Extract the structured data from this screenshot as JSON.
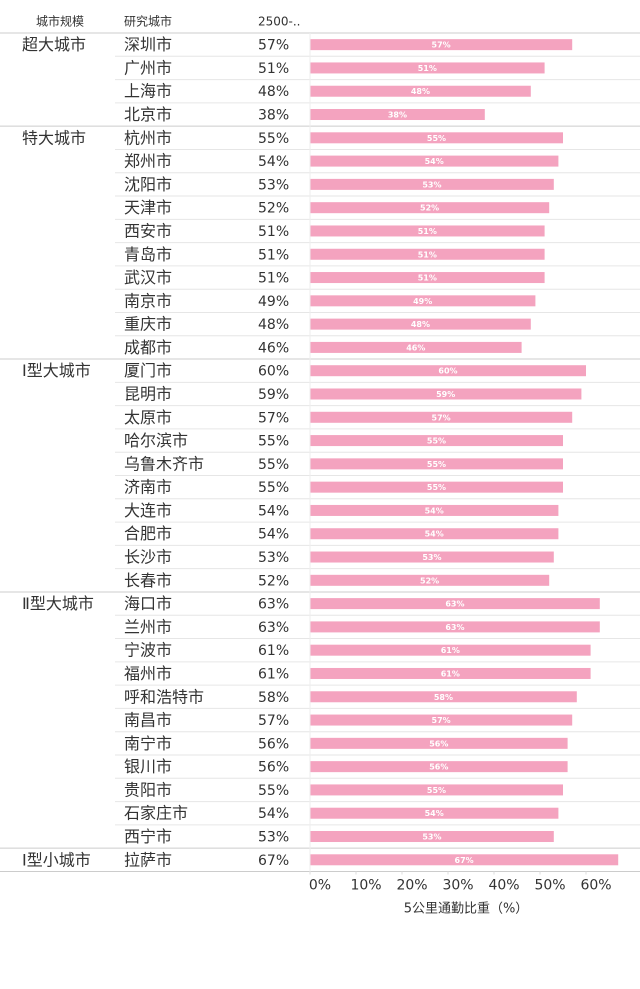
{
  "chart_data": {
    "type": "bar",
    "orientation": "horizontal",
    "headers": [
      "城市规模",
      "研究城市",
      "2500-.."
    ],
    "xlabel": "5公里通勤比重（%）",
    "color": "#f4a3bf",
    "xlim": [
      0,
      70
    ],
    "xticks": [
      {
        "value": 0,
        "label": "0%"
      },
      {
        "value": 10,
        "label": "10%"
      },
      {
        "value": 20,
        "label": "20%"
      },
      {
        "value": 30,
        "label": "30%"
      },
      {
        "value": 40,
        "label": "40%"
      },
      {
        "value": 50,
        "label": "50%"
      },
      {
        "value": 60,
        "label": "60%"
      }
    ],
    "groups": [
      {
        "name": "超大城市",
        "categories": [
          "深圳市",
          "广州市",
          "上海市",
          "北京市"
        ],
        "values": [
          57,
          51,
          48,
          38
        ],
        "value_labels": [
          "57%",
          "51%",
          "48%",
          "38%"
        ]
      },
      {
        "name": "特大城市",
        "categories": [
          "杭州市",
          "郑州市",
          "沈阳市",
          "天津市",
          "西安市",
          "青岛市",
          "武汉市",
          "南京市",
          "重庆市",
          "成都市"
        ],
        "values": [
          55,
          54,
          53,
          52,
          51,
          51,
          51,
          49,
          48,
          46
        ],
        "value_labels": [
          "55%",
          "54%",
          "53%",
          "52%",
          "51%",
          "51%",
          "51%",
          "49%",
          "48%",
          "46%"
        ]
      },
      {
        "name": "Ⅰ型大城市",
        "categories": [
          "厦门市",
          "昆明市",
          "太原市",
          "哈尔滨市",
          "乌鲁木齐市",
          "济南市",
          "大连市",
          "合肥市",
          "长沙市",
          "长春市"
        ],
        "values": [
          60,
          59,
          57,
          55,
          55,
          55,
          54,
          54,
          53,
          52
        ],
        "value_labels": [
          "60%",
          "59%",
          "57%",
          "55%",
          "55%",
          "55%",
          "54%",
          "54%",
          "53%",
          "52%"
        ]
      },
      {
        "name": "Ⅱ型大城市",
        "categories": [
          "海口市",
          "兰州市",
          "宁波市",
          "福州市",
          "呼和浩特市",
          "南昌市",
          "南宁市",
          "银川市",
          "贵阳市",
          "石家庄市",
          "西宁市"
        ],
        "values": [
          63,
          63,
          61,
          61,
          58,
          57,
          56,
          56,
          55,
          54,
          53
        ],
        "value_labels": [
          "63%",
          "63%",
          "61%",
          "61%",
          "58%",
          "57%",
          "56%",
          "56%",
          "55%",
          "54%",
          "53%"
        ]
      },
      {
        "name": "Ⅰ型小城市",
        "categories": [
          "拉萨市"
        ],
        "values": [
          67
        ],
        "value_labels": [
          "67%"
        ]
      }
    ]
  }
}
